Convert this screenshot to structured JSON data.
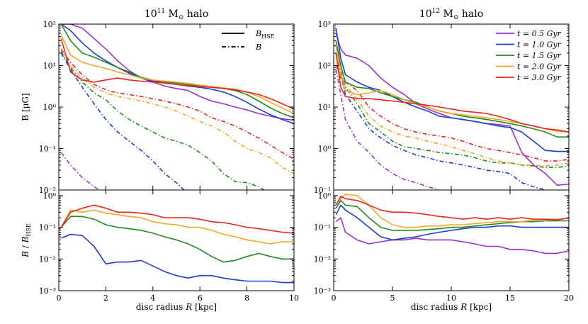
{
  "colors": {
    "t0_5": "#9b30d0",
    "t1_0": "#1f3bd6",
    "t1_5": "#1f8a1f",
    "t2_0": "#f5a623",
    "t3_0": "#e8261f"
  },
  "chart_data": [
    {
      "type": "line",
      "panel": "left-top",
      "title_main": "10",
      "title_sup": "11",
      "title_rest": " M",
      "title_sub": "⊙",
      "title_tail": " halo",
      "ylabel": "B [μG]",
      "yscale": "log",
      "xlim": [
        0,
        10
      ],
      "ylim": [
        0.01,
        100
      ],
      "yticks": [
        "10⁻²",
        "10⁻¹",
        "10⁰",
        "10¹",
        "10²"
      ],
      "legend": [
        {
          "label": "B_HSE",
          "text": "B",
          "sub": "HSE",
          "style": "solid"
        },
        {
          "label": "B",
          "text": "B",
          "sub": "",
          "style": "dashdot"
        }
      ],
      "x": [
        0.1,
        0.5,
        1,
        1.5,
        2,
        2.5,
        3,
        3.5,
        4,
        4.5,
        5,
        5.5,
        6,
        6.5,
        7,
        7.5,
        8,
        8.5,
        9,
        9.5,
        10
      ],
      "series_hse": [
        {
          "name": "t = 0.5 Gyr",
          "color": "t0_5",
          "values": [
            100,
            100,
            80,
            45,
            25,
            13,
            7.5,
            5,
            4,
            3.2,
            2.8,
            2.5,
            1.8,
            1.4,
            1.2,
            1.0,
            0.85,
            0.7,
            0.6,
            0.52,
            0.48
          ]
        },
        {
          "name": "t = 1.0 Gyr",
          "color": "t1_0",
          "values": [
            100,
            70,
            35,
            20,
            13,
            9,
            6.5,
            5,
            4.2,
            3.8,
            3.5,
            3.2,
            3.0,
            2.7,
            2.3,
            1.8,
            1.3,
            0.9,
            0.65,
            0.5,
            0.4
          ]
        },
        {
          "name": "t = 1.5 Gyr",
          "color": "t1_5",
          "values": [
            100,
            40,
            20,
            16,
            12,
            9,
            7,
            5.2,
            4.5,
            4.0,
            3.8,
            3.5,
            3.2,
            3.0,
            2.8,
            2.5,
            2.0,
            1.4,
            0.95,
            0.7,
            0.55
          ]
        },
        {
          "name": "t = 2.0 Gyr",
          "color": "t2_0",
          "values": [
            55,
            18,
            12,
            10,
            8.5,
            7,
            6,
            5,
            4.5,
            4.2,
            4.0,
            3.7,
            3.4,
            3.1,
            2.9,
            2.7,
            2.3,
            1.8,
            1.3,
            0.95,
            0.7
          ]
        },
        {
          "name": "t = 3.0 Gyr",
          "color": "t3_0",
          "values": [
            45,
            7,
            4.5,
            4.0,
            4.5,
            5,
            4.5,
            4.2,
            4.0,
            3.8,
            3.5,
            3.3,
            3.1,
            3.0,
            2.8,
            2.6,
            2.3,
            2.0,
            1.6,
            1.2,
            0.9
          ]
        }
      ],
      "series_b": [
        {
          "name": "t = 0.5 Gyr",
          "color": "t0_5",
          "values": [
            0.08,
            0.04,
            0.02,
            0.012,
            0.008
          ]
        },
        {
          "name": "t = 1.0 Gyr",
          "color": "t1_0",
          "values": [
            20,
            8,
            3,
            1.2,
            0.5,
            0.25,
            0.15,
            0.09,
            0.05,
            0.025,
            0.015,
            0.008
          ]
        },
        {
          "name": "t = 1.5 Gyr",
          "color": "t1_5",
          "values": [
            22,
            9,
            4,
            2.2,
            1.5,
            0.8,
            0.5,
            0.35,
            0.25,
            0.18,
            0.15,
            0.12,
            0.08,
            0.05,
            0.025,
            0.016,
            0.015,
            0.012,
            0.008
          ]
        },
        {
          "name": "t = 2.0 Gyr",
          "color": "t2_0",
          "values": [
            25,
            10,
            5,
            3,
            2.2,
            1.8,
            1.6,
            1.4,
            1.2,
            1.0,
            0.8,
            0.6,
            0.45,
            0.35,
            0.25,
            0.15,
            0.1,
            0.08,
            0.06,
            0.035,
            0.025
          ]
        },
        {
          "name": "t = 3.0 Gyr",
          "color": "t3_0",
          "values": [
            25,
            12,
            6,
            3.5,
            2.6,
            2.2,
            2.0,
            1.8,
            1.6,
            1.4,
            1.2,
            1.0,
            0.8,
            0.55,
            0.45,
            0.35,
            0.25,
            0.18,
            0.12,
            0.08,
            0.055
          ]
        }
      ]
    },
    {
      "type": "line",
      "panel": "right-top",
      "title_main": "10",
      "title_sup": "12",
      "title_rest": " M",
      "title_sub": "⊙",
      "title_tail": " halo",
      "yscale": "log",
      "xlim": [
        0,
        20
      ],
      "ylim": [
        0.1,
        1000
      ],
      "yticks": [
        "10⁻¹",
        "10⁰",
        "10¹",
        "10²",
        "10³"
      ],
      "legend": [
        {
          "label": "t = 0.5 Gyr",
          "color": "t0_5"
        },
        {
          "label": "t = 1.0 Gyr",
          "color": "t1_0"
        },
        {
          "label": "t = 1.5 Gyr",
          "color": "t1_5"
        },
        {
          "label": "t = 2.0 Gyr",
          "color": "t2_0"
        },
        {
          "label": "t = 3.0 Gyr",
          "color": "t3_0"
        }
      ],
      "x": [
        0.2,
        0.6,
        1,
        2,
        3,
        4,
        5,
        6,
        7,
        8,
        9,
        10,
        11,
        12,
        13,
        14,
        15,
        16,
        17,
        18,
        19,
        20
      ],
      "series_hse": [
        {
          "name": "t = 0.5 Gyr",
          "color": "t0_5",
          "values": [
            600,
            250,
            180,
            150,
            100,
            50,
            30,
            20,
            12,
            9,
            7,
            5.5,
            5,
            4.5,
            4,
            3.8,
            3.5,
            0.8,
            0.4,
            0.25,
            0.13,
            0.14
          ]
        },
        {
          "name": "t = 1.0 Gyr",
          "color": "t1_0",
          "values": [
            800,
            150,
            60,
            40,
            30,
            25,
            18,
            13,
            10,
            8,
            6,
            5.5,
            5,
            4.5,
            4,
            3.5,
            3.2,
            2.5,
            1.5,
            0.9,
            0.85,
            0.85
          ]
        },
        {
          "name": "t = 1.5 Gyr",
          "color": "t1_5",
          "values": [
            400,
            100,
            40,
            30,
            28,
            22,
            18,
            15,
            13,
            10,
            8,
            7,
            6,
            5.5,
            5,
            4.5,
            4,
            3.5,
            3,
            2.5,
            1.9,
            1.9
          ]
        },
        {
          "name": "t = 2.0 Gyr",
          "color": "t2_0",
          "values": [
            300,
            60,
            25,
            20,
            22,
            25,
            20,
            15,
            12,
            10,
            8,
            7,
            6.5,
            6,
            5.5,
            5,
            4.5,
            4,
            3.5,
            3,
            2.6,
            2.5
          ]
        },
        {
          "name": "t = 3.0 Gyr",
          "color": "t3_0",
          "values": [
            200,
            30,
            18,
            16,
            16,
            15,
            14,
            13,
            12,
            11,
            10,
            9,
            8,
            7.5,
            7,
            6,
            5,
            4,
            3.5,
            3,
            2.8,
            2.5
          ]
        }
      ],
      "series_b": [
        {
          "name": "t = 0.5 Gyr",
          "color": "t0_5",
          "values": [
            80,
            20,
            5,
            1.5,
            0.8,
            0.4,
            0.25,
            0.18,
            0.15,
            0.12,
            0.1
          ]
        },
        {
          "name": "t = 1.0 Gyr",
          "color": "t1_0",
          "values": [
            200,
            60,
            20,
            8,
            3,
            1.8,
            1.2,
            0.9,
            0.7,
            0.6,
            0.5,
            0.45,
            0.4,
            0.35,
            0.3,
            0.28,
            0.25,
            0.15,
            0.12,
            0.1
          ]
        },
        {
          "name": "t = 1.5 Gyr",
          "color": "t1_5",
          "values": [
            200,
            80,
            30,
            12,
            4,
            2.5,
            1.5,
            1.1,
            1.0,
            0.9,
            0.8,
            0.75,
            0.7,
            0.6,
            0.5,
            0.45,
            0.45,
            0.4,
            0.38,
            0.35,
            0.35,
            0.38
          ]
        },
        {
          "name": "t = 2.0 Gyr",
          "color": "t2_0",
          "values": [
            200,
            90,
            35,
            15,
            6,
            3.5,
            2.5,
            2.0,
            1.8,
            1.5,
            1.3,
            1.1,
            0.9,
            0.75,
            0.6,
            0.5,
            0.45,
            0.4,
            0.4,
            0.38,
            0.4,
            0.45
          ]
        },
        {
          "name": "t = 3.0 Gyr",
          "color": "t3_0",
          "values": [
            100,
            50,
            40,
            25,
            10,
            6,
            4,
            3,
            2.5,
            2.2,
            2.0,
            1.8,
            1.5,
            1.2,
            1.0,
            0.9,
            0.8,
            0.7,
            0.6,
            0.5,
            0.5,
            0.55
          ]
        }
      ]
    },
    {
      "type": "line",
      "panel": "left-bottom",
      "ylabel": "B / B_HSE",
      "ylabel_text": "B",
      "ylabel_mid": " / ",
      "ylabel_b2": "B",
      "ylabel_sub": "HSE",
      "xlabel": "disc radius R [kpc]",
      "xlabel_pre": "disc radius ",
      "xlabel_var": "R",
      "xlabel_post": " [kpc]",
      "yscale": "log",
      "xlim": [
        0,
        10
      ],
      "ylim": [
        0.001,
        1.5
      ],
      "xticks": [
        "0",
        "2",
        "4",
        "6",
        "8",
        "10"
      ],
      "yticks": [
        "10⁻³",
        "10⁻²",
        "10⁻¹",
        "10⁰"
      ],
      "x": [
        0.1,
        0.5,
        1,
        1.5,
        2,
        2.5,
        3,
        3.5,
        4,
        4.5,
        5,
        5.5,
        6,
        6.5,
        7,
        7.5,
        8,
        8.5,
        9,
        9.5,
        10
      ],
      "series": [
        {
          "name": "t = 1.0 Gyr",
          "color": "t1_0",
          "values": [
            0.045,
            0.06,
            0.055,
            0.025,
            0.007,
            0.008,
            0.008,
            0.009,
            0.006,
            0.004,
            0.003,
            0.0025,
            0.003,
            0.003,
            0.0025,
            0.0022,
            0.002,
            0.002,
            0.002,
            0.0018,
            0.0018
          ]
        },
        {
          "name": "t = 1.5 Gyr",
          "color": "t1_5",
          "values": [
            0.1,
            0.22,
            0.22,
            0.18,
            0.12,
            0.1,
            0.09,
            0.08,
            0.065,
            0.05,
            0.04,
            0.03,
            0.02,
            0.012,
            0.008,
            0.009,
            0.012,
            0.015,
            0.012,
            0.01,
            0.01
          ]
        },
        {
          "name": "t = 2.0 Gyr",
          "color": "t2_0",
          "values": [
            0.1,
            0.35,
            0.3,
            0.35,
            0.28,
            0.25,
            0.22,
            0.2,
            0.15,
            0.13,
            0.12,
            0.1,
            0.1,
            0.08,
            0.06,
            0.05,
            0.04,
            0.035,
            0.03,
            0.035,
            0.035
          ]
        },
        {
          "name": "t = 3.0 Gyr",
          "color": "t3_0",
          "values": [
            0.1,
            0.3,
            0.4,
            0.5,
            0.4,
            0.3,
            0.3,
            0.28,
            0.25,
            0.2,
            0.2,
            0.2,
            0.18,
            0.15,
            0.14,
            0.12,
            0.1,
            0.09,
            0.08,
            0.07,
            0.065
          ]
        }
      ]
    },
    {
      "type": "line",
      "panel": "right-bottom",
      "xlabel": "disc radius R [kpc]",
      "xlabel_pre": "disc radius ",
      "xlabel_var": "R",
      "xlabel_post": " [kpc]",
      "yscale": "log",
      "xlim": [
        0,
        20
      ],
      "ylim": [
        0.001,
        1.5
      ],
      "xticks": [
        "0",
        "5",
        "10",
        "15",
        "20"
      ],
      "yticks": [
        "10⁻³",
        "10⁻²",
        "10⁻¹",
        "10⁰"
      ],
      "x": [
        0.2,
        0.6,
        1,
        2,
        3,
        4,
        5,
        6,
        7,
        8,
        9,
        10,
        11,
        12,
        13,
        14,
        15,
        16,
        17,
        18,
        19,
        20
      ],
      "series": [
        {
          "name": "t = 0.5 Gyr",
          "color": "t0_5",
          "values": [
            0.15,
            0.2,
            0.07,
            0.04,
            0.03,
            0.035,
            0.04,
            0.04,
            0.045,
            0.04,
            0.04,
            0.04,
            0.035,
            0.03,
            0.025,
            0.025,
            0.02,
            0.02,
            0.018,
            0.015,
            0.015,
            0.018
          ]
        },
        {
          "name": "t = 1.0 Gyr",
          "color": "t1_0",
          "values": [
            0.25,
            0.5,
            0.35,
            0.2,
            0.1,
            0.05,
            0.04,
            0.045,
            0.05,
            0.06,
            0.07,
            0.08,
            0.09,
            0.1,
            0.1,
            0.11,
            0.11,
            0.1,
            0.1,
            0.1,
            0.1,
            0.1
          ]
        },
        {
          "name": "t = 1.5 Gyr",
          "color": "t1_5",
          "values": [
            0.4,
            0.7,
            0.5,
            0.45,
            0.2,
            0.1,
            0.08,
            0.08,
            0.08,
            0.085,
            0.09,
            0.1,
            0.1,
            0.11,
            0.12,
            0.13,
            0.14,
            0.15,
            0.15,
            0.16,
            0.16,
            0.16
          ]
        },
        {
          "name": "t = 2.0 Gyr",
          "color": "t2_0",
          "values": [
            0.5,
            0.8,
            1.1,
            1.0,
            0.5,
            0.2,
            0.12,
            0.1,
            0.1,
            0.11,
            0.11,
            0.12,
            0.12,
            0.13,
            0.14,
            0.15,
            0.15,
            0.15,
            0.17,
            0.18,
            0.18,
            0.19
          ]
        },
        {
          "name": "t = 3.0 Gyr",
          "color": "t3_0",
          "values": [
            0.5,
            0.95,
            0.8,
            0.7,
            0.5,
            0.35,
            0.3,
            0.3,
            0.28,
            0.25,
            0.22,
            0.2,
            0.18,
            0.2,
            0.18,
            0.2,
            0.18,
            0.2,
            0.18,
            0.18,
            0.17,
            0.2
          ]
        }
      ]
    }
  ]
}
